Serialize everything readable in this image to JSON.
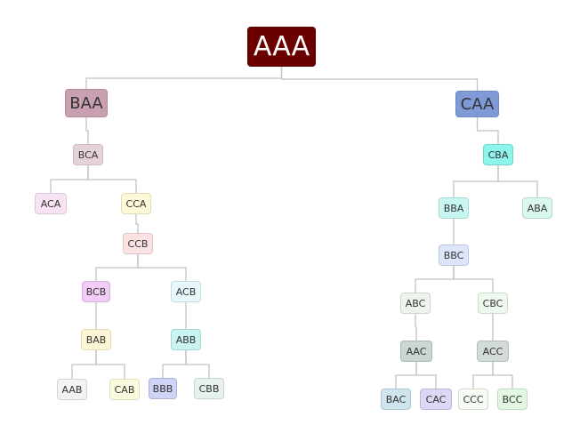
{
  "diagram": {
    "edge_color": "#bfc4c8",
    "nodes": [
      {
        "id": "AAA",
        "label": "AAA",
        "fill": "#6b0000",
        "stroke": "#5a0000",
        "level": "root"
      },
      {
        "id": "BAA",
        "label": "BAA",
        "fill": "#c9a0b1",
        "stroke": "#b48a9c",
        "level": "mid"
      },
      {
        "id": "CAA",
        "label": "CAA",
        "fill": "#7f9ad6",
        "stroke": "#6d88c4",
        "level": "mid"
      },
      {
        "id": "BCA",
        "label": "BCA",
        "fill": "#e6d3d8",
        "stroke": "#ccb8be",
        "level": "small"
      },
      {
        "id": "ACA",
        "label": "ACA",
        "fill": "#f7e3f3",
        "stroke": "#dcc7d8",
        "level": "small"
      },
      {
        "id": "CCA",
        "label": "CCA",
        "fill": "#fdf8d8",
        "stroke": "#e1dbb5",
        "level": "small"
      },
      {
        "id": "CCB",
        "label": "CCB",
        "fill": "#fbe3e3",
        "stroke": "#e2c3c3",
        "level": "small"
      },
      {
        "id": "BCB",
        "label": "BCB",
        "fill": "#f3ccf7",
        "stroke": "#d8aedd",
        "level": "small"
      },
      {
        "id": "ACB",
        "label": "ACB",
        "fill": "#e8f8fb",
        "stroke": "#c4dde2",
        "level": "small"
      },
      {
        "id": "BAB",
        "label": "BAB",
        "fill": "#fdf6d6",
        "stroke": "#e0d9b3",
        "level": "small"
      },
      {
        "id": "ABB",
        "label": "ABB",
        "fill": "#c9f4f0",
        "stroke": "#a8d8d3",
        "level": "small"
      },
      {
        "id": "AAB",
        "label": "AAB",
        "fill": "#f3f3f3",
        "stroke": "#d3d3d3",
        "level": "small"
      },
      {
        "id": "CAB",
        "label": "CAB",
        "fill": "#fbfbdf",
        "stroke": "#dedeba",
        "level": "small"
      },
      {
        "id": "BBB",
        "label": "BBB",
        "fill": "#cfd3f7",
        "stroke": "#adb2db",
        "level": "small"
      },
      {
        "id": "CBB",
        "label": "CBB",
        "fill": "#e8f2ec",
        "stroke": "#c6d7cc",
        "level": "small"
      },
      {
        "id": "CBA",
        "label": "CBA",
        "fill": "#8ef4ec",
        "stroke": "#6fd6cd",
        "level": "small"
      },
      {
        "id": "BBA",
        "label": "BBA",
        "fill": "#c8f7f1",
        "stroke": "#a6dad3",
        "level": "small"
      },
      {
        "id": "ABA",
        "label": "ABA",
        "fill": "#d9f7ee",
        "stroke": "#b7dacd",
        "level": "small"
      },
      {
        "id": "BBC",
        "label": "BBC",
        "fill": "#dde5fb",
        "stroke": "#bcc6e0",
        "level": "small"
      },
      {
        "id": "ABC",
        "label": "ABC",
        "fill": "#eef3ee",
        "stroke": "#ccd6cc",
        "level": "small"
      },
      {
        "id": "CBC",
        "label": "CBC",
        "fill": "#eef8ee",
        "stroke": "#ccdccc",
        "level": "small"
      },
      {
        "id": "AAC",
        "label": "AAC",
        "fill": "#c9d6d2",
        "stroke": "#a9b9b4",
        "level": "small"
      },
      {
        "id": "ACC",
        "label": "ACC",
        "fill": "#d3dbd8",
        "stroke": "#b3bebb",
        "level": "small"
      },
      {
        "id": "BAC",
        "label": "BAC",
        "fill": "#cfe4ee",
        "stroke": "#adc6d2",
        "level": "small"
      },
      {
        "id": "CAC",
        "label": "CAC",
        "fill": "#ddd6f5",
        "stroke": "#bdb5d9",
        "level": "small"
      },
      {
        "id": "CCC",
        "label": "CCC",
        "fill": "#f6fbf3",
        "stroke": "#d2dccd",
        "level": "small"
      },
      {
        "id": "BCC",
        "label": "BCC",
        "fill": "#e3f8e3",
        "stroke": "#c0dac0",
        "level": "small"
      }
    ],
    "edges": [
      [
        "AAA",
        "BAA"
      ],
      [
        "AAA",
        "CAA"
      ],
      [
        "BAA",
        "BCA"
      ],
      [
        "BCA",
        "ACA"
      ],
      [
        "BCA",
        "CCA"
      ],
      [
        "CCA",
        "CCB"
      ],
      [
        "CCB",
        "BCB"
      ],
      [
        "CCB",
        "ACB"
      ],
      [
        "BCB",
        "BAB"
      ],
      [
        "ACB",
        "ABB"
      ],
      [
        "BAB",
        "AAB"
      ],
      [
        "BAB",
        "CAB"
      ],
      [
        "ABB",
        "BBB"
      ],
      [
        "ABB",
        "CBB"
      ],
      [
        "CAA",
        "CBA"
      ],
      [
        "CBA",
        "BBA"
      ],
      [
        "CBA",
        "ABA"
      ],
      [
        "BBA",
        "BBC"
      ],
      [
        "BBC",
        "ABC"
      ],
      [
        "BBC",
        "CBC"
      ],
      [
        "ABC",
        "AAC"
      ],
      [
        "CBC",
        "ACC"
      ],
      [
        "AAC",
        "BAC"
      ],
      [
        "AAC",
        "CAC"
      ],
      [
        "ACC",
        "CCC"
      ],
      [
        "ACC",
        "BCC"
      ]
    ]
  }
}
